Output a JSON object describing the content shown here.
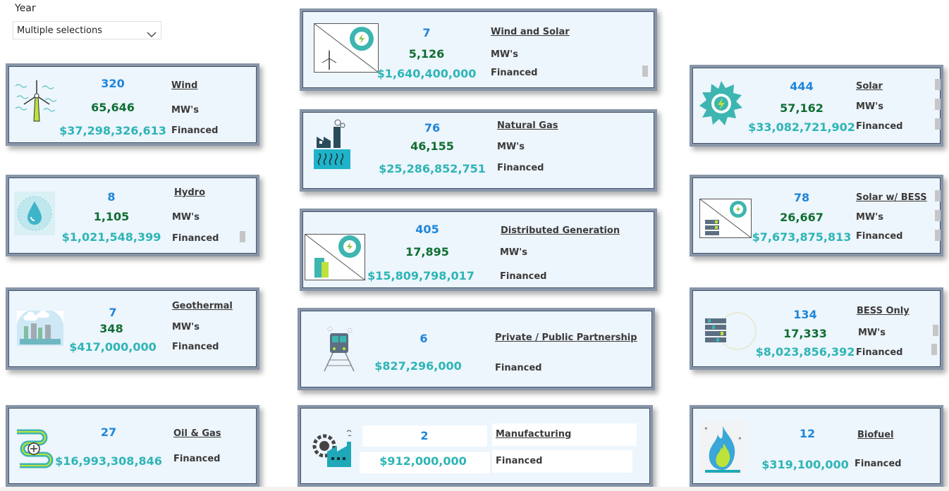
{
  "slicer": {
    "title": "Year",
    "value": "Multiple selections",
    "icon": "chevron-down-icon"
  },
  "colors": {
    "count": "#1f86d9",
    "mw": "#0f6e32",
    "money": "#2eb5b5",
    "card_bg": "#edf5fd",
    "border": "#8795a8"
  },
  "labels": {
    "mw": "MW's",
    "financed": "Financed"
  },
  "cards": {
    "wind": {
      "title": "Wind",
      "count": "320",
      "mw": "65,646",
      "amount": "$37,298,326,613",
      "icon": "wind-turbine-icon"
    },
    "hydro": {
      "title": "Hydro",
      "count": "8",
      "mw": "1,105",
      "amount": "$1,021,548,399",
      "icon": "water-drop-icon"
    },
    "geothermal": {
      "title": "Geothermal",
      "count": "7",
      "mw": "348",
      "amount": "$417,000,000",
      "icon": "geothermal-plant-icon"
    },
    "oil_gas": {
      "title": "Oil & Gas",
      "count": "27",
      "amount": "$16,993,308,846",
      "icon": "pipeline-icon"
    },
    "wind_solar": {
      "title": "Wind and Solar",
      "count": "7",
      "mw": "5,126",
      "amount": "$1,640,400,000",
      "icon": "wind-solar-icon"
    },
    "natural_gas": {
      "title": "Natural Gas",
      "count": "76",
      "mw": "46,155",
      "amount": "$25,286,852,751",
      "icon": "gas-plant-icon"
    },
    "distributed": {
      "title": "Distributed Generation",
      "count": "405",
      "mw": "17,895",
      "amount": "$15,809,798,017",
      "icon": "distributed-generation-icon"
    },
    "ppp": {
      "title": "Private / Public Partnership",
      "count": "6",
      "amount": "$827,296,000",
      "icon": "train-icon"
    },
    "manufacturing": {
      "title": "Manufacturing",
      "count": "2",
      "amount": "$912,000,000",
      "icon": "factory-gear-icon"
    },
    "solar": {
      "title": "Solar",
      "count": "444",
      "mw": "57,162",
      "amount": "$33,082,721,902",
      "icon": "sun-bolt-icon"
    },
    "solar_bess": {
      "title": "Solar w/ BESS",
      "count": "78",
      "mw": "26,667",
      "amount": "$7,673,875,813",
      "icon": "solar-battery-icon"
    },
    "bess": {
      "title": "BESS Only",
      "count": "134",
      "mw": "17,333",
      "amount": "$8,023,856,392",
      "icon": "battery-icon"
    },
    "biofuel": {
      "title": "Biofuel",
      "count": "12",
      "amount": "$319,100,000",
      "icon": "flame-icon"
    }
  }
}
